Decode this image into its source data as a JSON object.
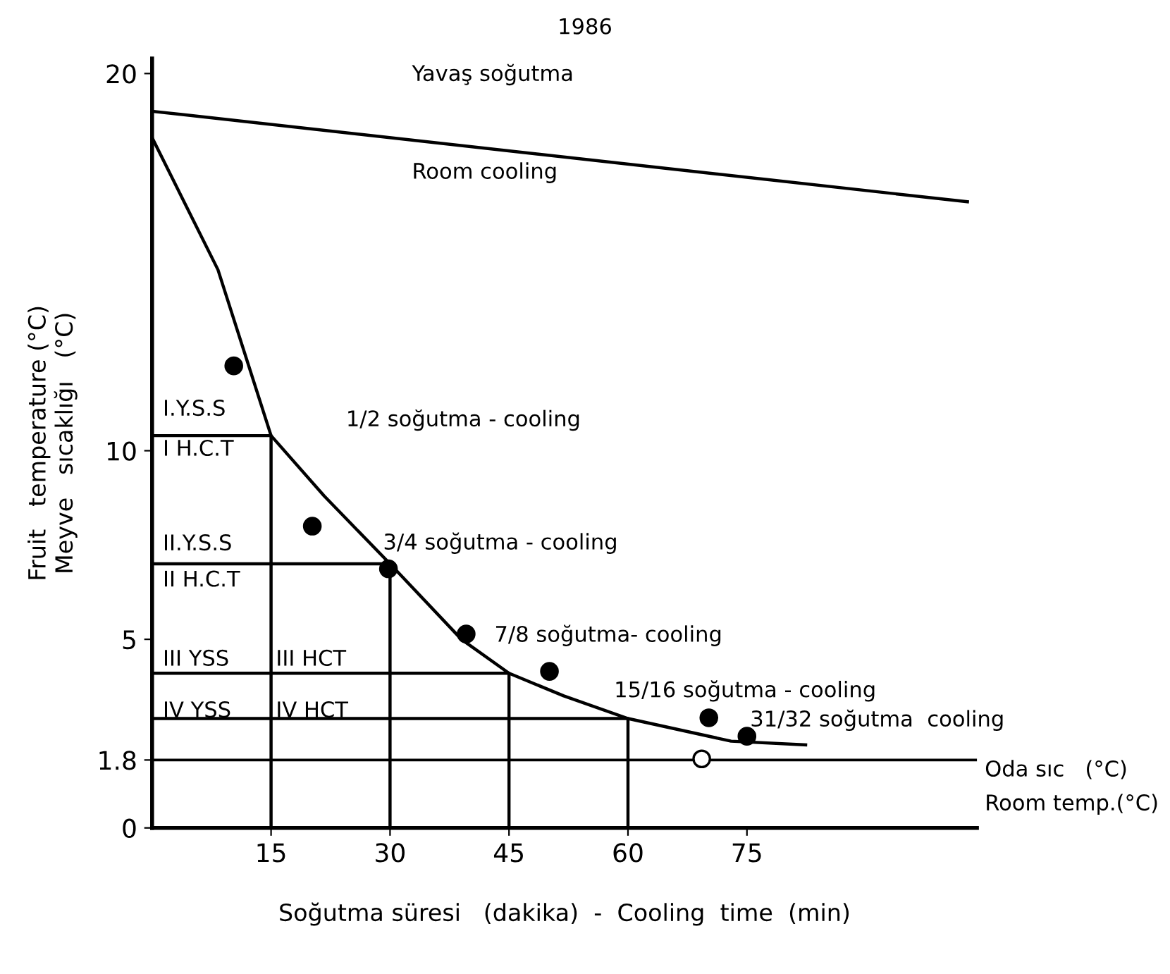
{
  "chart_data": {
    "type": "line",
    "title": "1986",
    "xlabel": "Soğutma süresi   (dakika)  -  Cooling  time  (min)",
    "ylabel": "Fruit   temperature (°C)\nMeyve   sıcaklığı   (°C)",
    "xlim": [
      0,
      104
    ],
    "ylim": [
      0,
      20.4
    ],
    "xticks": [
      15,
      30,
      45,
      60,
      75
    ],
    "yticks": [
      0,
      1.8,
      5,
      10,
      20
    ],
    "grid": false,
    "legend": false,
    "series": [
      {
        "color": "#000000",
        "x": [
          0,
          102.8
        ],
        "values": [
          19.0,
          16.6
        ]
      },
      {
        "color": "#000000",
        "x": [
          0,
          8.3,
          15,
          21.7,
          30,
          39,
          45,
          51.9,
          60,
          73,
          82.4
        ],
        "values": [
          18.3,
          14.8,
          10.4,
          8.8,
          7.0,
          5.0,
          4.1,
          3.5,
          2.9,
          2.3,
          2.2
        ]
      },
      {
        "type": "scatter",
        "color": "#000000",
        "marker": "circle",
        "x": [
          10.3,
          20.2,
          29.8,
          39.6,
          50.1,
          70.2,
          75.0
        ],
        "values": [
          12.25,
          8.0,
          6.87,
          5.14,
          4.15,
          2.92,
          2.43
        ]
      },
      {
        "type": "scatter",
        "color": "#ffffff",
        "marker": "circle",
        "x": [
          69.3
        ],
        "values": [
          1.83
        ]
      },
      {
        "color": "#000000",
        "x": [
          0,
          15,
          15
        ],
        "values": [
          10.4,
          10.4,
          0
        ]
      },
      {
        "color": "#000000",
        "x": [
          0,
          30,
          30
        ],
        "values": [
          7.0,
          7.0,
          0
        ]
      },
      {
        "color": "#000000",
        "x": [
          0,
          45,
          45
        ],
        "values": [
          4.1,
          4.1,
          0
        ]
      },
      {
        "color": "#000000",
        "x": [
          0,
          60,
          60
        ],
        "values": [
          2.9,
          2.9,
          0
        ]
      }
    ],
    "ref_lines": [
      {
        "axis": "y",
        "value": 1.8,
        "label": "Oda sıc   (°C)\nRoom temp.(°C)",
        "color": "#000000"
      }
    ],
    "annotations": [
      "Yavaş soğutma",
      "Room cooling",
      "I.Y.S.S",
      "I H.C.T",
      "1/2 soğutma - cooling",
      "II.Y.S.S",
      "II H.C.T",
      "3/4 soğutma - cooling",
      "III YSS",
      "III HCT",
      "IV YSS",
      "IV HCT",
      "7/8 soğutma- cooling",
      "15/16 soğutma - cooling",
      "31/32 soğutma  cooling"
    ]
  }
}
